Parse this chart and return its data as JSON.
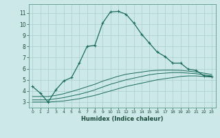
{
  "xlabel": "Humidex (Indice chaleur)",
  "bg_color": "#cce8e8",
  "grid_color": "#aacece",
  "line_color": "#1a6b5a",
  "xlim": [
    -0.5,
    23.5
  ],
  "ylim": [
    2.5,
    11.8
  ],
  "xticks": [
    0,
    1,
    2,
    3,
    4,
    5,
    6,
    7,
    8,
    9,
    10,
    11,
    12,
    13,
    14,
    15,
    16,
    17,
    18,
    19,
    20,
    21,
    22,
    23
  ],
  "yticks": [
    3,
    4,
    5,
    6,
    7,
    8,
    9,
    10,
    11
  ],
  "line1_x": [
    0,
    1,
    2,
    3,
    4,
    5,
    6,
    7,
    8,
    9,
    10,
    11,
    12,
    13,
    14,
    15,
    16,
    17,
    18,
    19,
    20,
    21,
    22,
    23
  ],
  "line1_y": [
    4.4,
    3.8,
    3.0,
    4.1,
    4.9,
    5.2,
    6.5,
    8.0,
    8.1,
    10.1,
    11.1,
    11.15,
    10.9,
    10.1,
    9.1,
    8.3,
    7.5,
    7.1,
    6.5,
    6.5,
    5.95,
    5.85,
    5.35,
    5.3
  ],
  "line2_x": [
    0,
    1,
    2,
    3,
    4,
    5,
    6,
    7,
    8,
    9,
    10,
    11,
    12,
    13,
    14,
    15,
    16,
    17,
    18,
    19,
    20,
    21,
    22,
    23
  ],
  "line2_y": [
    3.0,
    3.0,
    3.0,
    3.05,
    3.1,
    3.2,
    3.3,
    3.45,
    3.6,
    3.8,
    4.0,
    4.2,
    4.4,
    4.55,
    4.7,
    4.85,
    5.0,
    5.1,
    5.2,
    5.3,
    5.35,
    5.35,
    5.3,
    5.25
  ],
  "line3_x": [
    0,
    1,
    2,
    3,
    4,
    5,
    6,
    7,
    8,
    9,
    10,
    11,
    12,
    13,
    14,
    15,
    16,
    17,
    18,
    19,
    20,
    21,
    22,
    23
  ],
  "line3_y": [
    3.2,
    3.2,
    3.2,
    3.3,
    3.4,
    3.55,
    3.7,
    3.88,
    4.1,
    4.35,
    4.6,
    4.8,
    5.0,
    5.15,
    5.3,
    5.45,
    5.55,
    5.6,
    5.65,
    5.65,
    5.6,
    5.55,
    5.45,
    5.35
  ],
  "line4_x": [
    0,
    1,
    2,
    3,
    4,
    5,
    6,
    7,
    8,
    9,
    10,
    11,
    12,
    13,
    14,
    15,
    16,
    17,
    18,
    19,
    20,
    21,
    22,
    23
  ],
  "line4_y": [
    3.5,
    3.5,
    3.5,
    3.6,
    3.75,
    3.95,
    4.15,
    4.38,
    4.6,
    4.88,
    5.1,
    5.32,
    5.5,
    5.6,
    5.7,
    5.8,
    5.85,
    5.87,
    5.87,
    5.85,
    5.78,
    5.7,
    5.6,
    5.48
  ]
}
